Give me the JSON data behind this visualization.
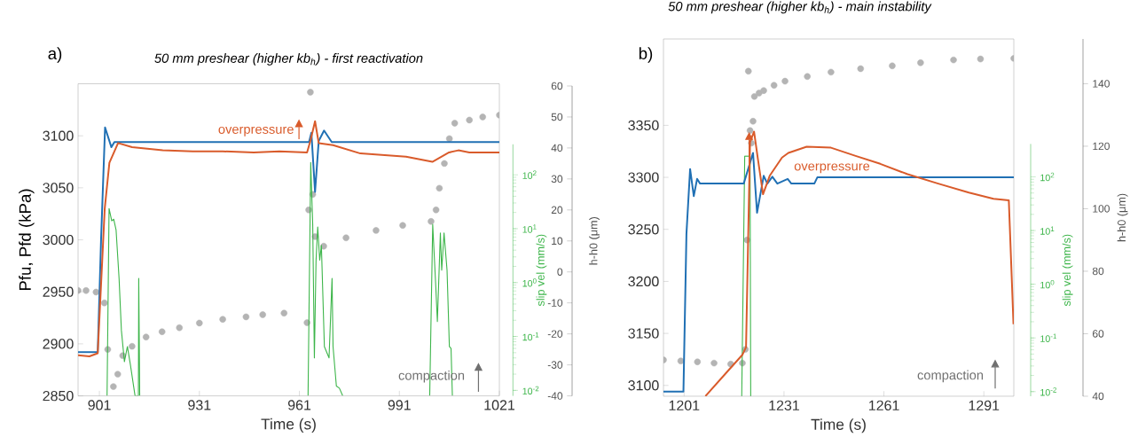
{
  "chart_data": [
    {
      "type": "line",
      "title": "50 mm preshear (higher kb$_{h}$) - first reactivation",
      "xlabel": "Time (s)",
      "ylabel": "Pfu, Pfd (kPa)",
      "y2label": "slip vel (mm/s)",
      "y3label": "h-h0 (μm)",
      "log": "y2",
      "xlim": [
        894.6,
        1021
      ],
      "xticks": [
        901,
        931,
        961,
        991,
        1021
      ],
      "ylim": [
        2850,
        3150
      ],
      "yticks": [
        2850,
        2900,
        2950,
        3000,
        3050,
        3100
      ],
      "y2lim": [
        0.0079,
        368
      ],
      "y2ticks": [
        {
          "value": 0.01,
          "label": "10$^{-2}$"
        },
        {
          "value": 0.1,
          "label": "10$^{-1}$"
        },
        {
          "value": 1,
          "label": "10$^{0}$"
        },
        {
          "value": 10,
          "label": "10$^{1}$"
        },
        {
          "value": 100,
          "label": "10$^{2}$"
        }
      ],
      "y3lim": [
        -40,
        60
      ],
      "y3ticks": [
        -40,
        -30,
        -20,
        -10,
        0,
        10,
        20,
        30,
        40,
        50,
        60
      ],
      "series": [
        {
          "type": "scatter",
          "axis": "y3",
          "color": "#b4b4b4",
          "marker": "circle",
          "x": [
            894.6,
            897,
            900,
            902.5,
            903.5,
            905.2,
            906.5,
            908,
            910.8,
            915,
            919.8,
            925,
            931,
            938,
            945,
            950,
            956.4,
            963.3,
            963.8,
            964.3,
            965,
            965.7,
            968.3,
            975,
            984,
            992,
            1000.5,
            1002,
            1003,
            1004.5,
            1006,
            1007.6,
            1012,
            1016,
            1021
          ],
          "values": [
            -6,
            -6,
            -6.5,
            -10,
            -25,
            -37,
            -33,
            -27,
            -24,
            -21,
            -19.3,
            -18,
            -16.5,
            -15.3,
            -14.5,
            -13.8,
            -13.3,
            -16.4,
            20,
            58,
            25,
            11.4,
            8.3,
            11,
            13.4,
            15,
            16.3,
            20,
            27,
            35,
            43,
            48,
            49,
            50,
            50.6
          ]
        },
        {
          "type": "line",
          "axis": "y2",
          "color": "#3db54a",
          "x": [
            903.3,
            903.9,
            904.7,
            905.3,
            906.0,
            906.9,
            907.6,
            908.5,
            909.4,
            910.3,
            911.7,
            912.7,
            912.8,
            913.1,
            913.5,
            963.6,
            964.4,
            965.0,
            965.5,
            966.0,
            966.5,
            967.1,
            967.6,
            968.5,
            969.9,
            970.8,
            971.1,
            972.1,
            973.0,
            974.0,
            974.5,
            1000.1,
            1001.0,
            1001.9,
            1002.4,
            1003.3,
            1003.7,
            1004.4,
            1005.3,
            1006.0,
            1006.5,
            1006.9
          ],
          "values": [
            0.0079,
            23.7,
            14,
            15,
            9.5,
            1.2,
            0.13,
            0.034,
            0.065,
            0.03,
            0.0079,
            0.0079,
            1.2,
            0.0079,
            null,
            0.0079,
            169,
            12,
            0.04,
            2.6,
            10.8,
            2.6,
            4.9,
            0.065,
            0.04,
            1.2,
            0.065,
            0.012,
            0.011,
            0.0079,
            null,
            0.0079,
            12,
            0.9,
            0.19,
            8.3,
            1.7,
            8.3,
            1.7,
            0.065,
            0.06,
            0.0079
          ]
        },
        {
          "type": "line",
          "color": "#2070b4",
          "x": [
            894.6,
            900.5,
            901.5,
            902.7,
            904.6,
            905.5,
            963.9,
            964.6,
            965.7,
            966.8,
            968.4,
            970.7,
            1021
          ],
          "values": [
            2892,
            2892,
            3000,
            3108,
            3089,
            3094,
            3094,
            3103,
            3046,
            3095,
            3105,
            3094,
            3094
          ]
        },
        {
          "type": "line",
          "color": "#d95b2b",
          "x": [
            894.6,
            898,
            900.5,
            902.6,
            904,
            906.6,
            910.8,
            920,
            929,
            938,
            947.3,
            955,
            963.3,
            964.3,
            965.7,
            966.8,
            971.1,
            979.3,
            993,
            1000.9,
            1005.9,
            1008.7,
            1012,
            1021
          ],
          "values": [
            2889,
            2888,
            2891,
            3030,
            3074,
            3093,
            3089,
            3086,
            3085,
            3085,
            3084,
            3085,
            3084,
            3095,
            3114,
            3093,
            3091,
            3083,
            3080,
            3075,
            3084,
            3086,
            3084,
            3084
          ]
        }
      ],
      "annotations": [
        "a)",
        "overpressure",
        "compaction"
      ]
    },
    {
      "type": "line",
      "title": "50 mm preshear (higher kb$_{h}$) - main instability",
      "xlabel": "Time (s)",
      "y2label": "slip vel (mm/s)",
      "y3label": "h-h0 (μm)",
      "log": "y2",
      "xlim": [
        1194.8,
        1300
      ],
      "xticks": [
        1201,
        1231,
        1261,
        1291
      ],
      "ylim": [
        3089.6,
        3433
      ],
      "yticks": [
        3100,
        3150,
        3200,
        3250,
        3300,
        3350
      ],
      "y2lim": [
        0.0082,
        410
      ],
      "y2ticks": [
        {
          "value": 0.01,
          "label": "10$^{-2}$"
        },
        {
          "value": 0.1,
          "label": "10$^{-1}$"
        },
        {
          "value": 1,
          "label": "10$^{0}$"
        },
        {
          "value": 10,
          "label": "10$^{1}$"
        },
        {
          "value": 100,
          "label": "10$^{2}$"
        }
      ],
      "y3lim": [
        40,
        154.3
      ],
      "y3ticks": [
        40,
        60,
        80,
        100,
        120,
        140
      ],
      "series": [
        {
          "type": "scatter",
          "axis": "y3",
          "color": "#b4b4b4",
          "marker": "circle",
          "x": [
            1194.8,
            1200,
            1205,
            1210,
            1215,
            1218.5,
            1219.4,
            1219.9,
            1220.3,
            1220.8,
            1221.2,
            1221.7,
            1222.1,
            1223.5,
            1224.9,
            1228,
            1231.3,
            1238,
            1245.1,
            1254,
            1263.5,
            1272,
            1281.9,
            1290,
            1300
          ],
          "values": [
            51.6,
            51.3,
            51,
            50.6,
            50.3,
            50.6,
            55,
            90,
            144,
            125,
            121,
            128,
            135.9,
            137,
            137.8,
            139.5,
            140.8,
            142.3,
            143.7,
            144.8,
            145.7,
            146.7,
            147.6,
            147.9,
            148.1
          ]
        },
        {
          "type": "line",
          "axis": "y2",
          "color": "#3db54a",
          "x": [
            1218.3,
            1219.2,
            1220.8,
            1221
          ],
          "values": [
            0.0082,
            243,
            243,
            0.0082
          ]
        },
        {
          "type": "line",
          "color": "#2070b4",
          "x": [
            1194.8,
            1200.8,
            1201.7,
            1202.8,
            1203.9,
            1204.9,
            1205.8,
            1218.9,
            1221.7,
            1222.9,
            1224.9,
            1226,
            1227.5,
            1229,
            1232.1,
            1233.2,
            1240.1,
            1241,
            1300
          ],
          "values": [
            3094,
            3094,
            3245.6,
            3308,
            3282,
            3298.5,
            3294,
            3294,
            3323.5,
            3266,
            3301.5,
            3294,
            3300.6,
            3294,
            3298.5,
            3294,
            3294,
            3300,
            3300
          ]
        },
        {
          "type": "line",
          "color": "#d95b2b",
          "x": [
            1207.4,
            1213.9,
            1218.5,
            1219.6,
            1220.8,
            1222,
            1223.1,
            1224.7,
            1226.7,
            1230.4,
            1232.3,
            1237.8,
            1245.1,
            1252.5,
            1259.9,
            1268.1,
            1277.3,
            1286.5,
            1293.9,
            1298.5,
            1299.9
          ],
          "values": [
            3089.7,
            3113,
            3129.4,
            3136.8,
            3333.8,
            3344,
            3319,
            3283.8,
            3301.5,
            3319,
            3323.5,
            3329.4,
            3328.5,
            3320.6,
            3313,
            3303,
            3294,
            3285.3,
            3279.4,
            3278,
            3158.8
          ]
        }
      ],
      "annotations": [
        "b)",
        "overpressure",
        "compaction"
      ]
    }
  ]
}
